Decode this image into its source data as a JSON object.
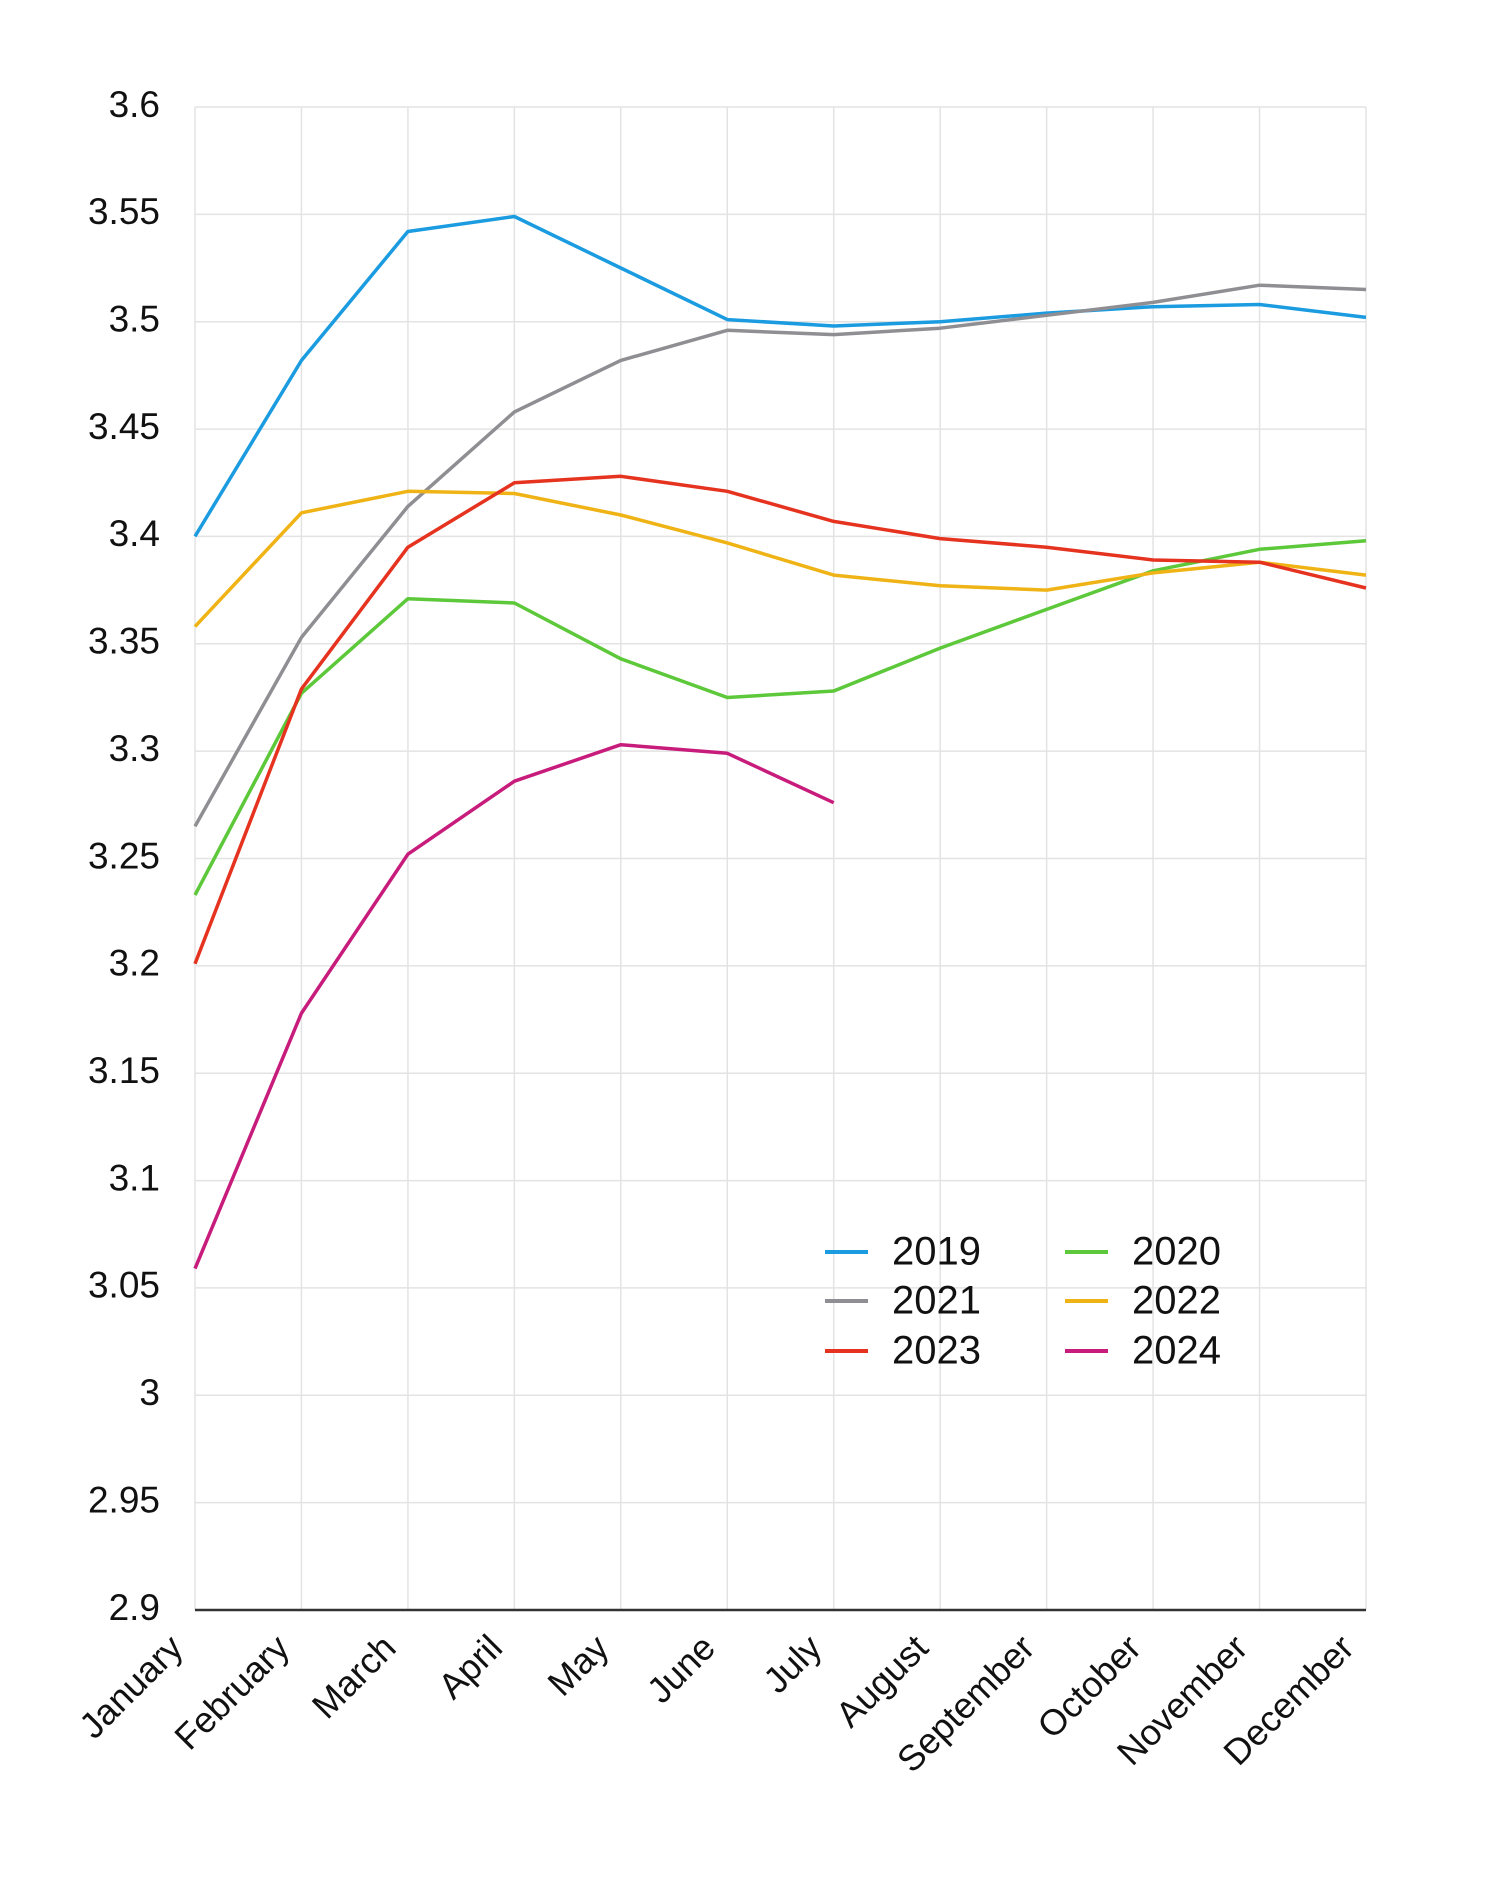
{
  "chart_data": {
    "type": "line",
    "title": "",
    "xlabel": "",
    "ylabel": "",
    "categories": [
      "January",
      "February",
      "March",
      "April",
      "May",
      "June",
      "July",
      "August",
      "September",
      "October",
      "November",
      "December"
    ],
    "ylim": [
      2.9,
      3.6
    ],
    "yticks": [
      2.9,
      2.95,
      3,
      3.05,
      3.1,
      3.15,
      3.2,
      3.25,
      3.3,
      3.35,
      3.4,
      3.45,
      3.5,
      3.55,
      3.6
    ],
    "ytick_labels": [
      "2.9",
      "2.95",
      "3",
      "3.05",
      "3.1",
      "3.15",
      "3.2",
      "3.25",
      "3.3",
      "3.35",
      "3.4",
      "3.45",
      "3.5",
      "3.55",
      "3.6"
    ],
    "grid": true,
    "legend_position": "lower-right-center, two columns",
    "series": [
      {
        "name": "2019",
        "color": "#1b9be0",
        "values": [
          3.4,
          3.482,
          3.542,
          3.549,
          3.525,
          3.501,
          3.498,
          3.5,
          3.504,
          3.507,
          3.508,
          3.502
        ]
      },
      {
        "name": "2020",
        "color": "#5cc83a",
        "values": [
          3.233,
          3.327,
          3.371,
          3.369,
          3.343,
          3.325,
          3.328,
          3.348,
          3.366,
          3.384,
          3.394,
          3.398
        ]
      },
      {
        "name": "2021",
        "color": "#8f8f93",
        "values": [
          3.265,
          3.353,
          3.414,
          3.458,
          3.482,
          3.496,
          3.494,
          3.497,
          3.503,
          3.509,
          3.517,
          3.515
        ]
      },
      {
        "name": "2022",
        "color": "#efb316",
        "values": [
          3.358,
          3.411,
          3.421,
          3.42,
          3.41,
          3.397,
          3.382,
          3.377,
          3.375,
          3.383,
          3.388,
          3.382
        ]
      },
      {
        "name": "2023",
        "color": "#e5331f",
        "values": [
          3.201,
          3.329,
          3.395,
          3.425,
          3.428,
          3.421,
          3.407,
          3.399,
          3.395,
          3.389,
          3.388,
          3.376
        ]
      },
      {
        "name": "2024",
        "color": "#c81c7c",
        "values": [
          3.059,
          3.178,
          3.252,
          3.286,
          3.303,
          3.299,
          3.276,
          null,
          null,
          null,
          null,
          null
        ]
      }
    ],
    "legend_order": [
      "2019",
      "2020",
      "2021",
      "2022",
      "2023",
      "2024"
    ]
  }
}
